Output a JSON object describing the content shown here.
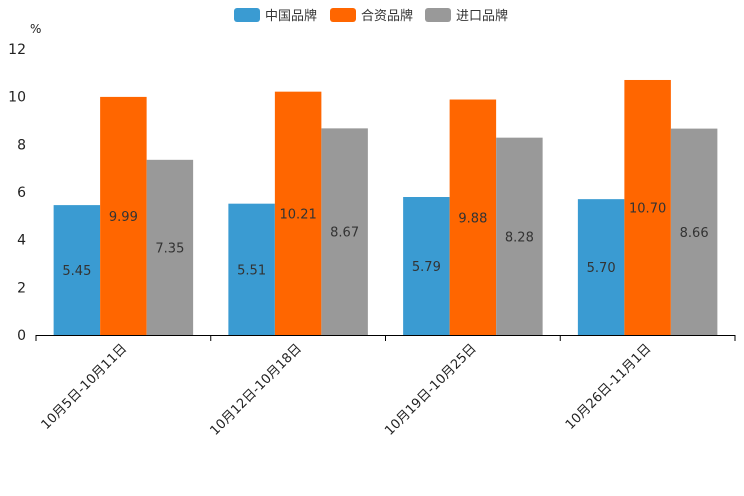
{
  "chart_data": {
    "type": "bar",
    "unit": "%",
    "categories": [
      "10月5日-10月11日",
      "10月12日-10月18日",
      "10月19日-10月25日",
      "10月26日-11月1日"
    ],
    "series": [
      {
        "name": "中国品牌",
        "color": "#3a9bd2",
        "values": [
          5.45,
          5.51,
          5.79,
          5.7
        ],
        "labels": [
          "5.45",
          "5.51",
          "5.79",
          "5.70"
        ]
      },
      {
        "name": "合资品牌",
        "color": "#ff6600",
        "values": [
          9.99,
          10.21,
          9.88,
          10.7
        ],
        "labels": [
          "9.99",
          "10.21",
          "9.88",
          "10.70"
        ]
      },
      {
        "name": "进口品牌",
        "color": "#999999",
        "values": [
          7.35,
          8.67,
          8.28,
          8.66
        ],
        "labels": [
          "7.35",
          "8.67",
          "8.28",
          "8.66"
        ]
      }
    ],
    "yticks": [
      "0",
      "2",
      "4",
      "6",
      "8",
      "10",
      "12"
    ],
    "ylim": [
      0,
      12
    ],
    "legend_position": "top-center",
    "grid": false
  }
}
